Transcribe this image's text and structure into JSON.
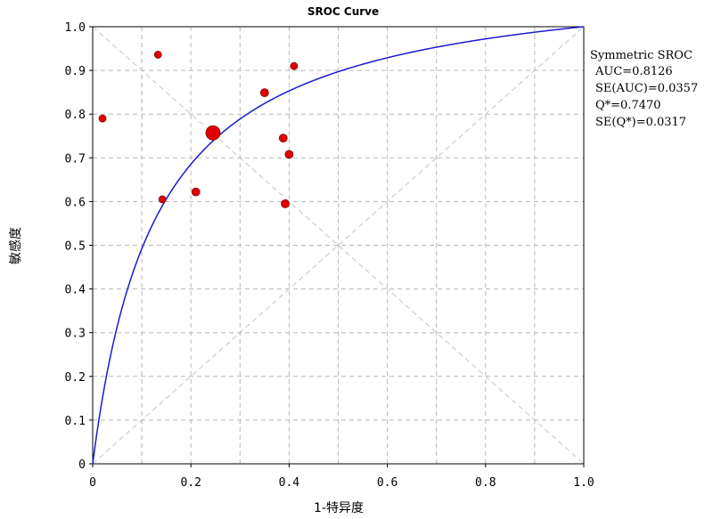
{
  "chart_data": {
    "type": "scatter",
    "title": "SROC Curve",
    "xlabel": "1-特异度",
    "ylabel": "敏感度",
    "xlim": [
      0,
      1
    ],
    "ylim": [
      0,
      1
    ],
    "x_ticks": [
      "0",
      "0.2",
      "0.4",
      "0.6",
      "0.8",
      "1.0"
    ],
    "y_ticks": [
      "0",
      "0.1",
      "0.2",
      "0.3",
      "0.4",
      "0.5",
      "0.6",
      "0.7",
      "0.8",
      "0.9",
      "1.0"
    ],
    "grid": true,
    "studies": [
      {
        "x": 0.02,
        "y": 0.79,
        "size": 4
      },
      {
        "x": 0.133,
        "y": 0.936,
        "size": 4
      },
      {
        "x": 0.142,
        "y": 0.605,
        "size": 4
      },
      {
        "x": 0.21,
        "y": 0.622,
        "size": 4.5
      },
      {
        "x": 0.245,
        "y": 0.757,
        "size": 8
      },
      {
        "x": 0.35,
        "y": 0.849,
        "size": 4.5
      },
      {
        "x": 0.388,
        "y": 0.745,
        "size": 4.5
      },
      {
        "x": 0.392,
        "y": 0.595,
        "size": 4.5
      },
      {
        "x": 0.4,
        "y": 0.708,
        "size": 4.5
      },
      {
        "x": 0.41,
        "y": 0.91,
        "size": 4
      }
    ],
    "sroc_curve": {
      "model": "symmetric",
      "auc": 0.8126,
      "color": "#1a1ad0"
    },
    "point_color": "#e00000",
    "stats": {
      "heading": "Symmetric SROC",
      "lines": [
        "AUC=0.8126",
        "SE(AUC)=0.0357",
        "Q*=0.7470",
        "SE(Q*)=0.0317"
      ]
    }
  }
}
